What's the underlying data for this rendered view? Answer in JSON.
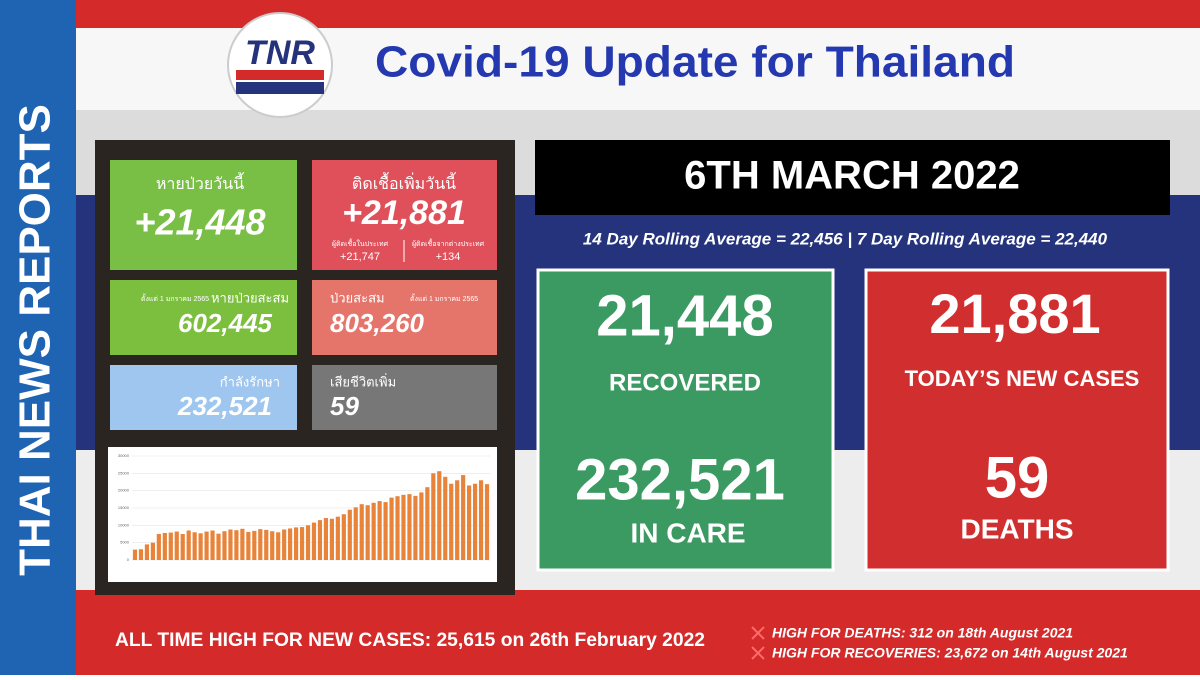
{
  "side_label": "THAI NEWS REPORTS",
  "header": {
    "logo": "TNR",
    "title": "Covid-19 Update for Thailand"
  },
  "tiles": {
    "recovered_today": {
      "label": "หายป่วยวันนี้",
      "value": "+21,448"
    },
    "new_cases_today": {
      "label": "ติดเชื้อเพิ่มวันนี้",
      "value": "+21,881",
      "domestic_label": "ผู้ติดเชื้อในประเทศ",
      "domestic": "+21,747",
      "imported_label": "ผู้ติดเชื้อจากต่างประเทศ",
      "imported": "+134"
    },
    "recovered_total": {
      "note": "ตั้งแต่ 1 มกราคม 2565",
      "label": "หายป่วยสะสม",
      "value": "602,445"
    },
    "cases_total": {
      "label": "ป่วยสะสม",
      "note": "ตั้งแต่ 1 มกราคม 2565",
      "value": "803,260"
    },
    "in_care": {
      "label": "กำลังรักษา",
      "value": "232,521"
    },
    "deaths": {
      "label": "เสียชีวิตเพิ่ม",
      "value": "59"
    }
  },
  "mini_chart": {
    "color": "#e8833a",
    "ylim": [
      0,
      30000
    ],
    "yticks": [
      0,
      5000,
      10000,
      15000,
      20000,
      25000,
      30000
    ],
    "values": [
      3000,
      3100,
      4500,
      5000,
      7500,
      7800,
      7900,
      8200,
      7500,
      8500,
      8000,
      7700,
      8200,
      8500,
      7600,
      8300,
      8800,
      8600,
      9000,
      8100,
      8400,
      8900,
      8700,
      8300,
      8000,
      8800,
      9100,
      9400,
      9500,
      10000,
      10800,
      11500,
      12100,
      11900,
      12500,
      13200,
      14500,
      15200,
      16100,
      15800,
      16500,
      17000,
      16700,
      18000,
      18400,
      18800,
      19000,
      18500,
      19500,
      21000,
      25000,
      25615,
      24000,
      22000,
      23000,
      24500,
      21500,
      22000,
      23000,
      21881
    ]
  },
  "date": "6TH MARCH 2022",
  "rolling": "14 Day Rolling Average = 22,456 |  7 Day Rolling Average = 22,440",
  "recovered_box": {
    "value": "21,448",
    "label": "RECOVERED",
    "in_care_value": "232,521",
    "in_care_label": "IN CARE"
  },
  "cases_box": {
    "value": "21,881",
    "label": "TODAY’S NEW CASES",
    "deaths_value": "59",
    "deaths_label": "DEATHS"
  },
  "footer": {
    "high_cases": "ALL TIME HIGH FOR NEW CASES: 25,615 on 26th February 2022",
    "high_deaths": "HIGH FOR DEATHS: 312 on 18th August 2021",
    "high_recoveries": "HIGH FOR RECOVERIES: 23,672 on 14th August 2021"
  }
}
